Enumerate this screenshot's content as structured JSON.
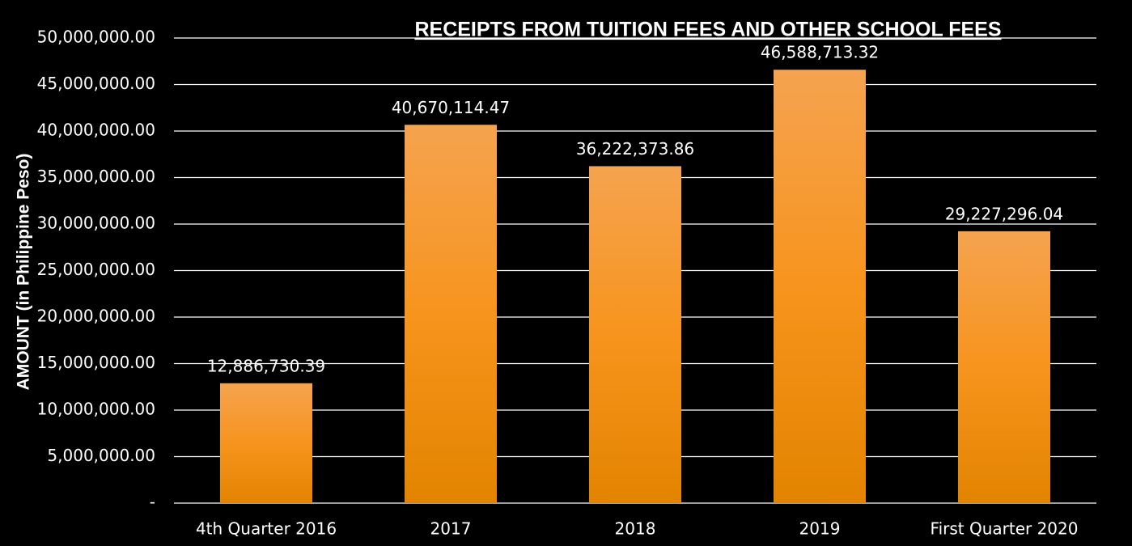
{
  "chart_data": {
    "type": "bar",
    "title": "RECEIPTS FROM TUITION FEES AND OTHER SCHOOL FEES",
    "y_label": "AMOUNT (in Philippine Peso)",
    "categories": [
      "4th Quarter 2016",
      "2017",
      "2018",
      "2019",
      "First Quarter 2020"
    ],
    "values": [
      12886730.39,
      40670114.47,
      36222373.86,
      46588713.32,
      29227296.04
    ],
    "value_labels": [
      "12,886,730.39",
      "40,670,114.47",
      "36,222,373.86",
      "46,588,713.32",
      "29,227,296.04"
    ],
    "color": "#f7941d",
    "ylim": [
      0,
      50000000
    ],
    "yticks": [
      {
        "value": 0,
        "label": "-"
      },
      {
        "value": 5000000,
        "label": "5,000,000.00"
      },
      {
        "value": 10000000,
        "label": "10,000,000.00"
      },
      {
        "value": 15000000,
        "label": "15,000,000.00"
      },
      {
        "value": 20000000,
        "label": "20,000,000.00"
      },
      {
        "value": 25000000,
        "label": "25,000,000.00"
      },
      {
        "value": 30000000,
        "label": "30,000,000.00"
      },
      {
        "value": 35000000,
        "label": "35,000,000.00"
      },
      {
        "value": 40000000,
        "label": "40,000,000.00"
      },
      {
        "value": 45000000,
        "label": "45,000,000.00"
      },
      {
        "value": 50000000,
        "label": "50,000,000.00"
      }
    ],
    "grid": true
  }
}
